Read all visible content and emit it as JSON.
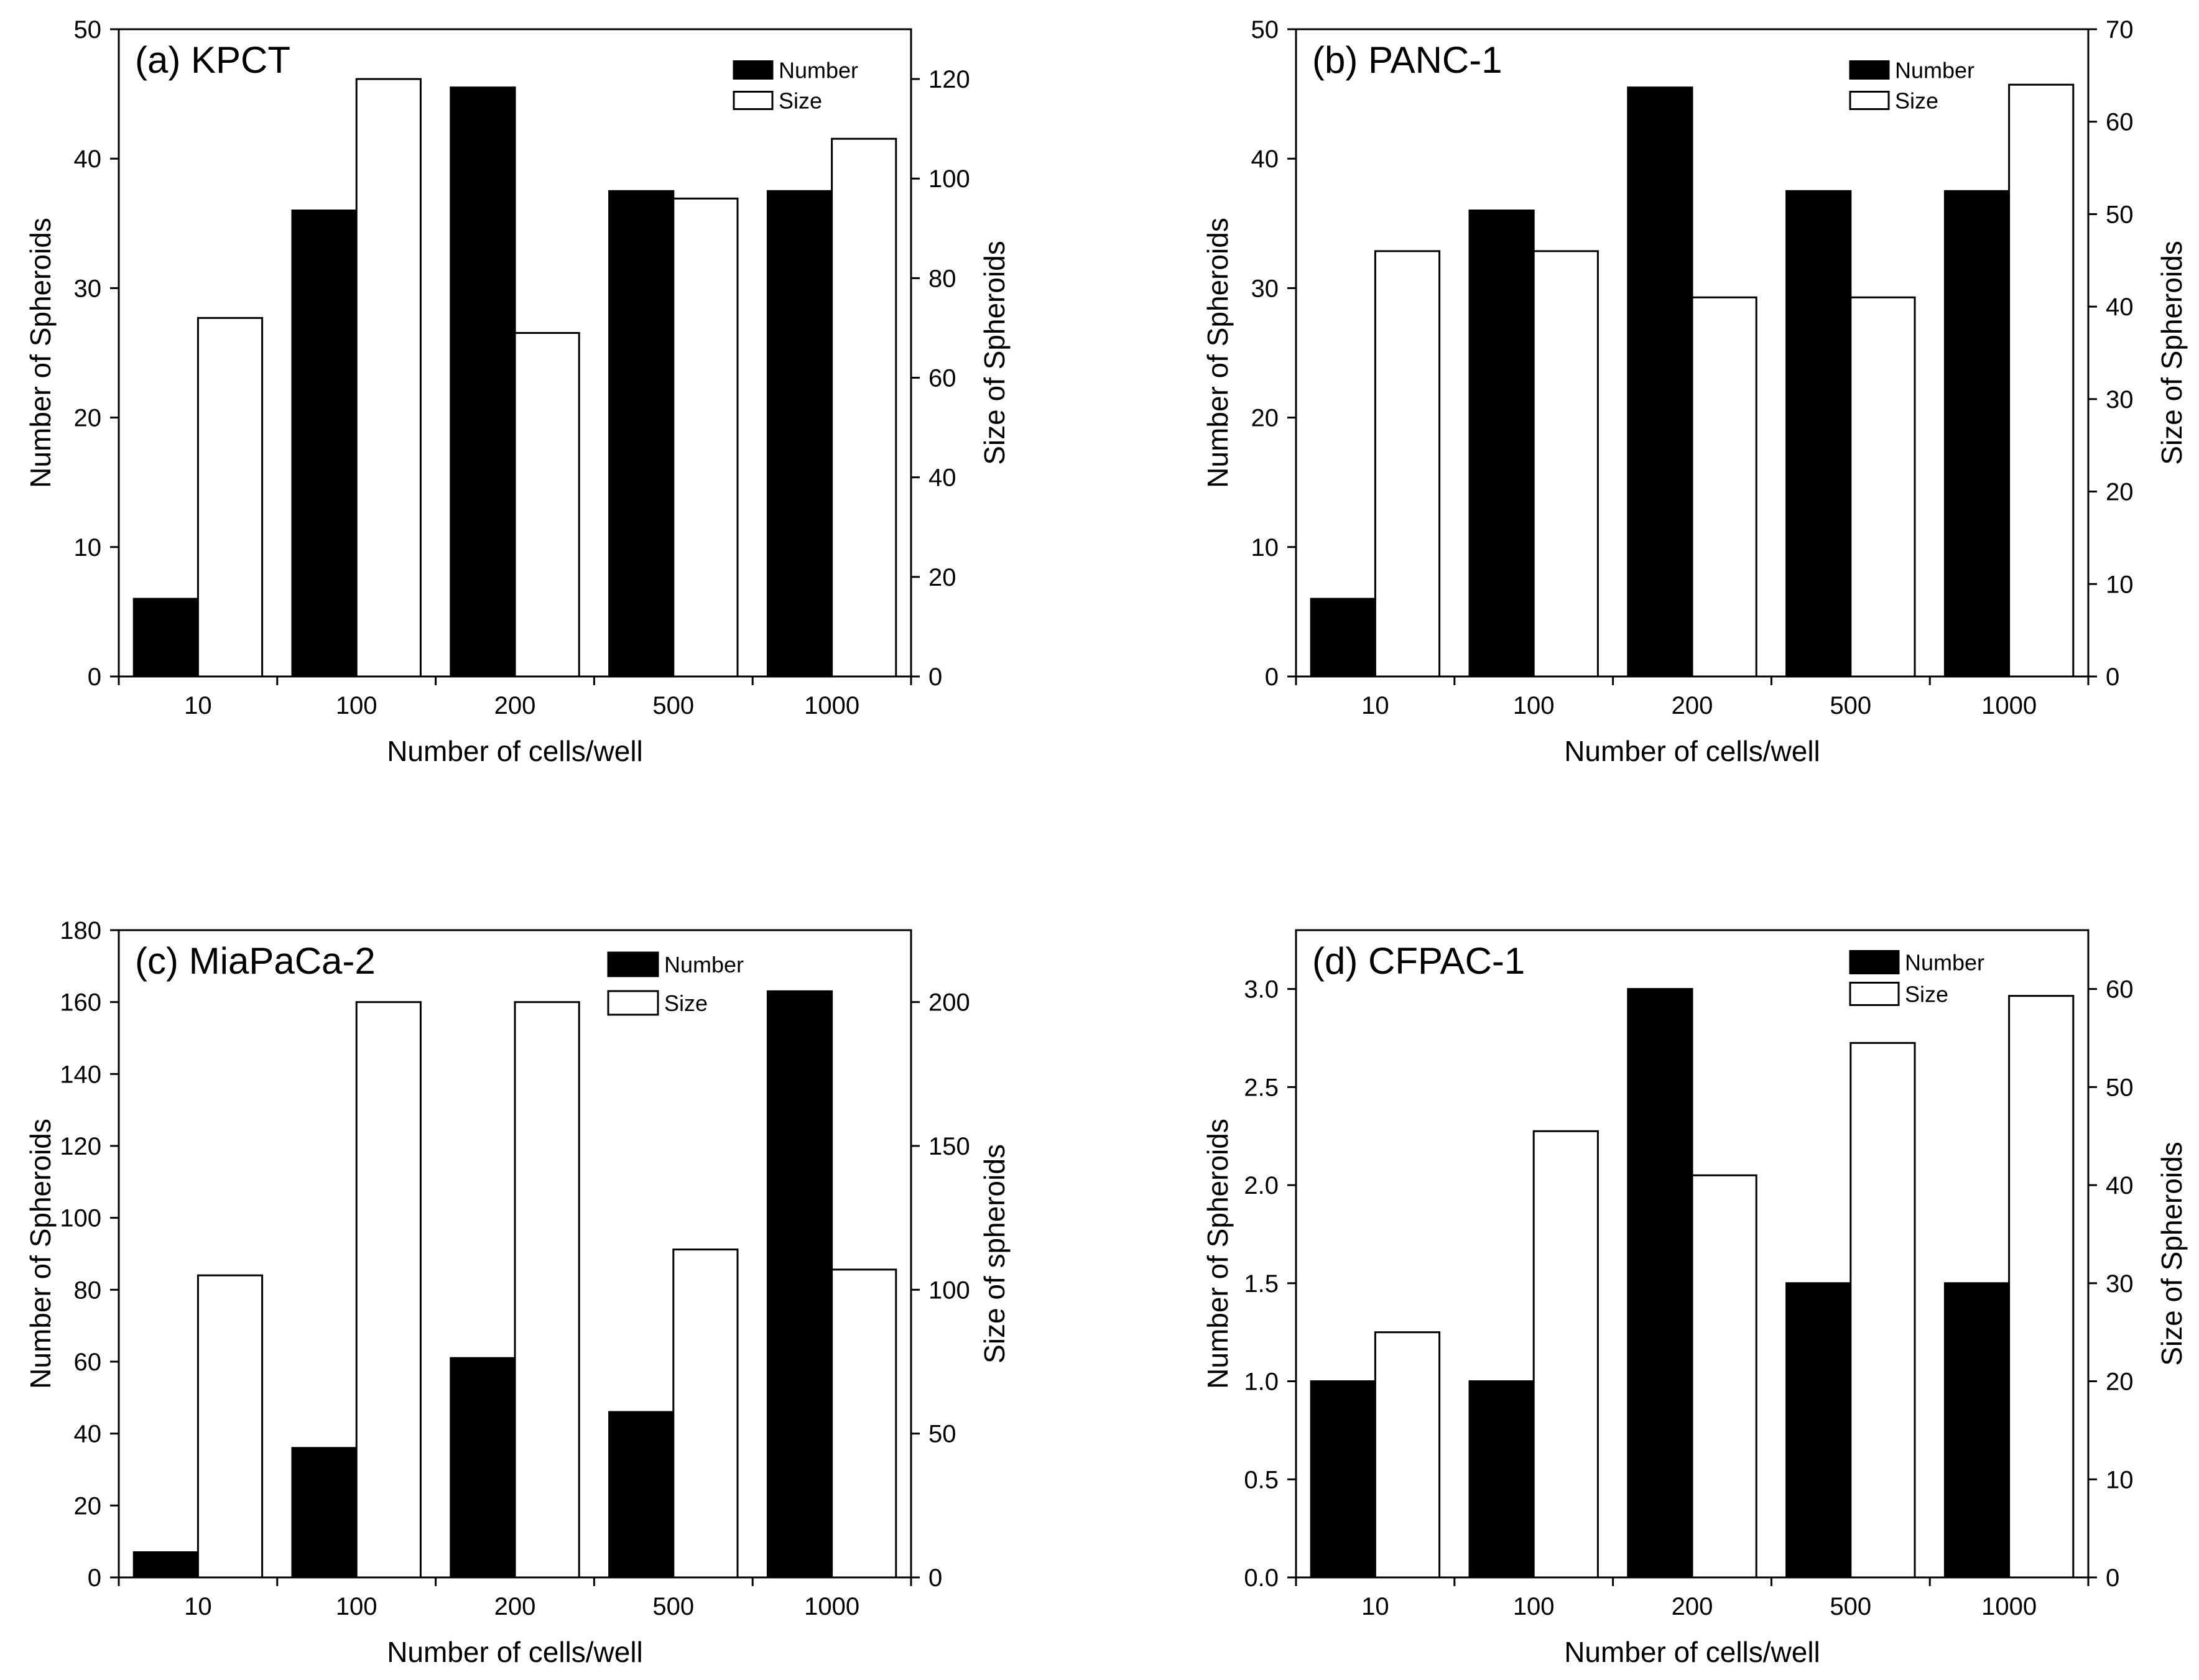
{
  "chart_data": [
    {
      "type": "bar",
      "title": "(a) KPCT",
      "xlabel": "Number of cells/well",
      "ylabel": "Number of Spheroids",
      "y2label": "Size of Spheroids",
      "categories": [
        "10",
        "100",
        "200",
        "500",
        "1000"
      ],
      "ylim": [
        0,
        50
      ],
      "yticks": [
        0,
        10,
        20,
        30,
        40,
        50
      ],
      "y2lim": [
        0,
        130
      ],
      "y2ticks": [
        0,
        20,
        40,
        60,
        80,
        100,
        120
      ],
      "legend_position": "top-right",
      "series": [
        {
          "name": "Number",
          "axis": "left",
          "fill": "#000000",
          "values": [
            6,
            36,
            45.5,
            37.5,
            37.5
          ]
        },
        {
          "name": "Size",
          "axis": "right",
          "fill": "#ffffff",
          "values": [
            72,
            120,
            69,
            96,
            108
          ]
        }
      ]
    },
    {
      "type": "bar",
      "title": "(b) PANC-1",
      "xlabel": "Number of cells/well",
      "ylabel": "Number of Spheroids",
      "y2label": "Size of Spheroids",
      "categories": [
        "10",
        "100",
        "200",
        "500",
        "1000"
      ],
      "ylim": [
        0,
        50
      ],
      "yticks": [
        0,
        10,
        20,
        30,
        40,
        50
      ],
      "y2lim": [
        0,
        70
      ],
      "y2ticks": [
        0,
        10,
        20,
        30,
        40,
        50,
        60,
        70
      ],
      "legend_position": "top-right",
      "series": [
        {
          "name": "Number",
          "axis": "left",
          "fill": "#000000",
          "values": [
            6,
            36,
            45.5,
            37.5,
            37.5
          ]
        },
        {
          "name": "Size",
          "axis": "right",
          "fill": "#ffffff",
          "values": [
            46,
            46,
            41,
            41,
            64
          ]
        }
      ]
    },
    {
      "type": "bar",
      "title": "(c) MiaPaCa-2",
      "xlabel": "Number of cells/well",
      "ylabel": "Number of Spheroids",
      "y2label": "Size of spheroids",
      "categories": [
        "10",
        "100",
        "200",
        "500",
        "1000"
      ],
      "ylim": [
        0,
        180
      ],
      "yticks": [
        0,
        20,
        40,
        60,
        80,
        100,
        120,
        140,
        160,
        180
      ],
      "y2lim": [
        0,
        225
      ],
      "y2ticks": [
        0,
        50,
        100,
        150,
        200
      ],
      "legend_position": "top-right",
      "series": [
        {
          "name": "Number",
          "axis": "left",
          "fill": "#000000",
          "values": [
            7,
            36,
            61,
            46,
            163
          ]
        },
        {
          "name": "Size",
          "axis": "right",
          "fill": "#ffffff",
          "values": [
            105,
            200,
            200,
            114,
            107
          ]
        }
      ]
    },
    {
      "type": "bar",
      "title": "(d) CFPAC-1",
      "xlabel": "Number of cells/well",
      "ylabel": "Number of Spheroids",
      "y2label": "Size of Spheroids",
      "categories": [
        "10",
        "100",
        "200",
        "500",
        "1000"
      ],
      "ylim": [
        0,
        3.3
      ],
      "yticks": [
        0.0,
        0.5,
        1.0,
        1.5,
        2.0,
        2.5,
        3.0
      ],
      "y2lim": [
        0,
        66
      ],
      "y2ticks": [
        0,
        10,
        20,
        30,
        40,
        50,
        60
      ],
      "legend_position": "top-right",
      "series": [
        {
          "name": "Number",
          "axis": "left",
          "fill": "#000000",
          "values": [
            1,
            1,
            3,
            1.5,
            1.5
          ]
        },
        {
          "name": "Size",
          "axis": "right",
          "fill": "#ffffff",
          "values": [
            25,
            45.5,
            41,
            54.5,
            59.3
          ]
        }
      ]
    }
  ]
}
